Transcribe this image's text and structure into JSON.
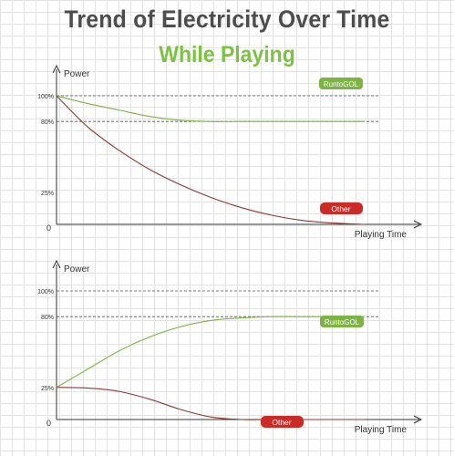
{
  "title": "Trend of Electricity Over Time",
  "subtitle": "While Playing",
  "colors": {
    "runtogol": "#7cb342",
    "other": "#8b3a2e",
    "other_badge": "#cc2a24",
    "title": "#4d4d4d",
    "subtitle": "#7cc242"
  },
  "chart_data": [
    {
      "type": "line",
      "ylabel": "Power",
      "xlabel": "Playing Time",
      "xlim": [
        0,
        10
      ],
      "ylim": [
        0,
        100
      ],
      "yticks": [
        {
          "value": 100,
          "label": "100%"
        },
        {
          "value": 80,
          "label": "80%"
        },
        {
          "value": 25,
          "label": "25%"
        },
        {
          "value": 0,
          "label": "0"
        }
      ],
      "reference_lines": [
        100,
        80
      ],
      "series": [
        {
          "name": "RuntoGOL",
          "color": "#7cb342",
          "x": [
            0,
            1,
            2,
            3,
            4,
            5,
            6,
            7,
            8,
            9,
            10
          ],
          "y": [
            100,
            94,
            89,
            84,
            81,
            80,
            80,
            80,
            80,
            80,
            80
          ]
        },
        {
          "name": "Other",
          "color": "#8b3a2e",
          "x": [
            0,
            1,
            2,
            3,
            4,
            5,
            6,
            7,
            8,
            9,
            10
          ],
          "y": [
            100,
            76,
            58,
            43,
            31,
            21,
            13,
            7,
            3,
            1,
            0
          ]
        }
      ]
    },
    {
      "type": "line",
      "ylabel": "Power",
      "xlabel": "Playing Time",
      "xlim": [
        0,
        10
      ],
      "ylim": [
        0,
        100
      ],
      "yticks": [
        {
          "value": 100,
          "label": "100%"
        },
        {
          "value": 80,
          "label": "80%"
        },
        {
          "value": 25,
          "label": "25%"
        },
        {
          "value": 0,
          "label": "0"
        }
      ],
      "reference_lines": [
        100,
        80
      ],
      "series": [
        {
          "name": "RuntoGOL",
          "color": "#7cb342",
          "x": [
            0,
            1,
            2,
            3,
            4,
            5,
            6,
            7,
            8,
            9,
            10
          ],
          "y": [
            25,
            39,
            53,
            64,
            72,
            77,
            79,
            80,
            80,
            80,
            80
          ]
        },
        {
          "name": "Other",
          "color": "#8b3a2e",
          "x": [
            0,
            1,
            2,
            3,
            4,
            5,
            6,
            7,
            8,
            9,
            10
          ],
          "y": [
            25,
            24.5,
            22,
            16,
            8,
            2,
            0,
            0,
            0,
            0,
            0
          ]
        }
      ]
    }
  ]
}
